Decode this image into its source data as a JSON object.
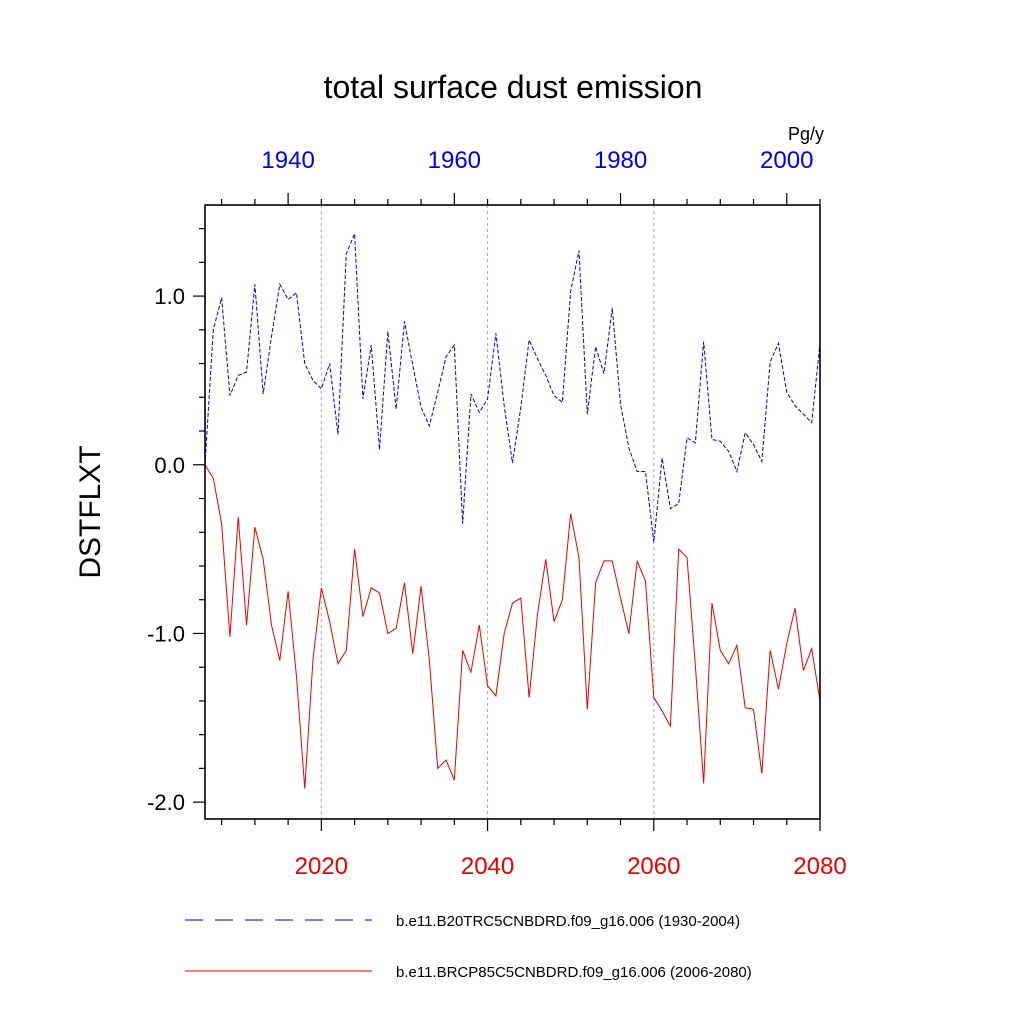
{
  "chart_data": {
    "type": "line",
    "title": "total surface dust emission",
    "ylabel": "DSTFLXT",
    "units": "Pg/y",
    "ylim": [
      -2.1,
      1.54
    ],
    "yticks": [
      -2.0,
      -1.0,
      0.0,
      1.0
    ],
    "ytick_labels": [
      "-2.0",
      "-1.0",
      "0.0",
      "1.0"
    ],
    "xaxis_bottom": {
      "range": [
        2006,
        2080
      ],
      "ticks": [
        2020,
        2040,
        2060,
        2080
      ],
      "labels": [
        "2020",
        "2040",
        "2060",
        "2080"
      ],
      "color": "#ee0000"
    },
    "xaxis_top": {
      "range": [
        1930,
        2004
      ],
      "ticks": [
        1940,
        1960,
        1980,
        2000
      ],
      "labels": [
        "1940",
        "1960",
        "1980",
        "2000"
      ],
      "color": "#0000ee"
    },
    "gridlines_x": [
      2020,
      2040,
      2060
    ],
    "series": [
      {
        "name": "b.e11.B20TRC5CNBDRD.f09_g16.006 (1930-2004)",
        "axis": "top",
        "style": "dashed",
        "color": "#0000ee",
        "x_start": 1930,
        "values": [
          0.0,
          0.8,
          0.99,
          0.41,
          0.53,
          0.55,
          1.07,
          0.42,
          0.76,
          1.07,
          0.98,
          1.02,
          0.6,
          0.5,
          0.45,
          0.6,
          0.18,
          1.25,
          1.37,
          0.39,
          0.71,
          0.09,
          0.79,
          0.33,
          0.85,
          0.59,
          0.34,
          0.23,
          0.43,
          0.64,
          0.71,
          -0.35,
          0.42,
          0.31,
          0.39,
          0.78,
          0.35,
          0.01,
          0.34,
          0.74,
          0.63,
          0.53,
          0.41,
          0.37,
          1.03,
          1.27,
          0.3,
          0.7,
          0.54,
          0.93,
          0.36,
          0.1,
          -0.04,
          -0.04,
          -0.46,
          0.04,
          -0.26,
          -0.23,
          0.16,
          0.13,
          0.73,
          0.15,
          0.14,
          0.08,
          -0.04,
          0.19,
          0.12,
          0.02,
          0.61,
          0.72,
          0.43,
          0.35,
          0.3,
          0.25,
          0.72
        ]
      },
      {
        "name": "b.e11.BRCP85C5CNBDRD.f09_g16.006 (2006-2080)",
        "axis": "bottom",
        "style": "solid",
        "color": "#ee0000",
        "x_start": 2006,
        "values": [
          0.0,
          -0.08,
          -0.35,
          -1.02,
          -0.31,
          -0.95,
          -0.37,
          -0.56,
          -0.95,
          -1.16,
          -0.75,
          -1.25,
          -1.92,
          -1.15,
          -0.73,
          -0.93,
          -1.18,
          -1.1,
          -0.5,
          -0.9,
          -0.73,
          -0.76,
          -1.0,
          -0.97,
          -0.7,
          -1.12,
          -0.72,
          -1.16,
          -1.8,
          -1.75,
          -1.87,
          -1.1,
          -1.23,
          -0.95,
          -1.31,
          -1.37,
          -1.0,
          -0.82,
          -0.79,
          -1.38,
          -0.89,
          -0.56,
          -0.93,
          -0.8,
          -0.29,
          -0.55,
          -1.45,
          -0.7,
          -0.57,
          -0.57,
          -0.79,
          -1.0,
          -0.57,
          -0.69,
          -1.38,
          -1.46,
          -1.55,
          -0.5,
          -0.55,
          -1.19,
          -1.89,
          -0.82,
          -1.1,
          -1.18,
          -1.07,
          -1.44,
          -1.45,
          -1.83,
          -1.1,
          -1.33,
          -1.06,
          -0.85,
          -1.22,
          -1.09,
          -1.4
        ]
      }
    ],
    "legend_position": "bottom"
  }
}
